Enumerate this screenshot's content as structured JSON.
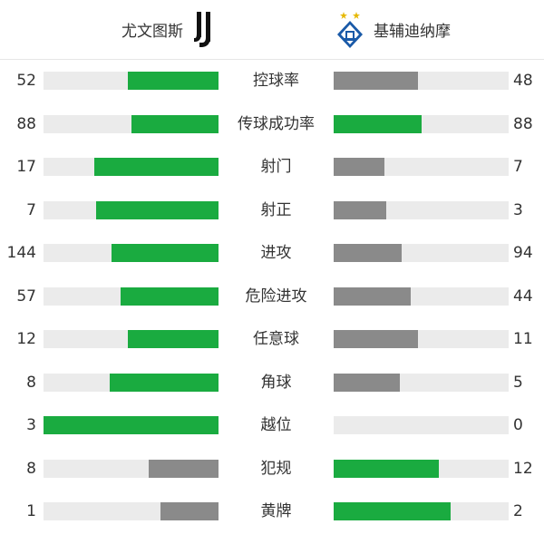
{
  "header": {
    "home_team": "尤文图斯",
    "away_team": "基辅迪纳摩",
    "home_logo_icon": "juventus-logo",
    "away_logo_icon": "dynamo-kyiv-logo"
  },
  "colors": {
    "better": "#1aab40",
    "worse": "#8a8a8a",
    "track": "#ebebeb"
  },
  "stats": [
    {
      "label": "控球率",
      "home": "52",
      "away": "48",
      "home_fill": 0.52,
      "away_fill": 0.48,
      "home_color": "green",
      "away_color": "gray"
    },
    {
      "label": "传球成功率",
      "home": "88",
      "away": "88",
      "home_fill": 0.5,
      "away_fill": 0.5,
      "home_color": "green",
      "away_color": "green"
    },
    {
      "label": "射门",
      "home": "17",
      "away": "7",
      "home_fill": 0.71,
      "away_fill": 0.29,
      "home_color": "green",
      "away_color": "gray"
    },
    {
      "label": "射正",
      "home": "7",
      "away": "3",
      "home_fill": 0.7,
      "away_fill": 0.3,
      "home_color": "green",
      "away_color": "gray"
    },
    {
      "label": "进攻",
      "home": "144",
      "away": "94",
      "home_fill": 0.61,
      "away_fill": 0.39,
      "home_color": "green",
      "away_color": "gray"
    },
    {
      "label": "危险进攻",
      "home": "57",
      "away": "44",
      "home_fill": 0.56,
      "away_fill": 0.44,
      "home_color": "green",
      "away_color": "gray"
    },
    {
      "label": "任意球",
      "home": "12",
      "away": "11",
      "home_fill": 0.52,
      "away_fill": 0.48,
      "home_color": "green",
      "away_color": "gray"
    },
    {
      "label": "角球",
      "home": "8",
      "away": "5",
      "home_fill": 0.62,
      "away_fill": 0.38,
      "home_color": "green",
      "away_color": "gray"
    },
    {
      "label": "越位",
      "home": "3",
      "away": "0",
      "home_fill": 1.0,
      "away_fill": 0.0,
      "home_color": "green",
      "away_color": "gray"
    },
    {
      "label": "犯规",
      "home": "8",
      "away": "12",
      "home_fill": 0.4,
      "away_fill": 0.6,
      "home_color": "gray",
      "away_color": "green"
    },
    {
      "label": "黄牌",
      "home": "1",
      "away": "2",
      "home_fill": 0.33,
      "away_fill": 0.67,
      "home_color": "gray",
      "away_color": "green"
    }
  ]
}
